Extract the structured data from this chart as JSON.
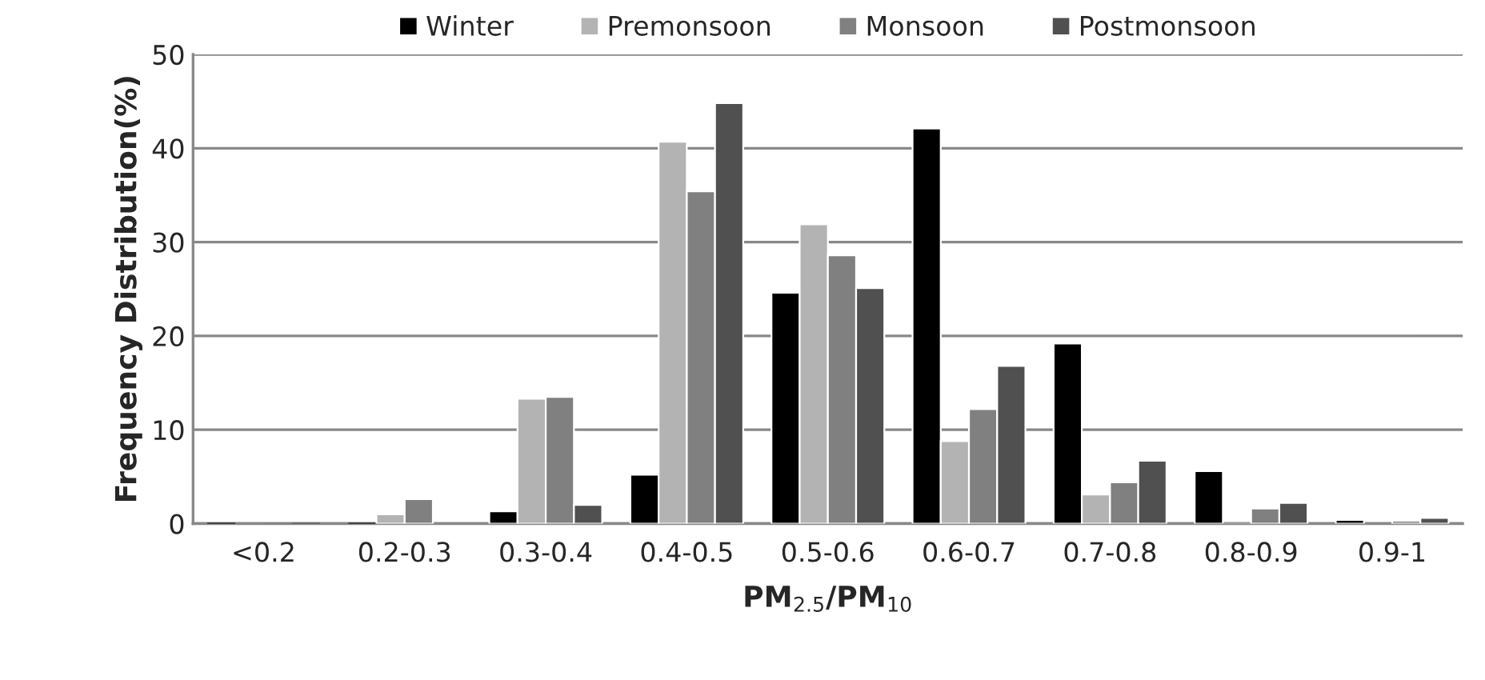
{
  "chart_data": {
    "type": "bar",
    "xlabel": "PM$_{2.5}$/PM$_{10}$",
    "ylabel": "Frequency Distribution(%)",
    "categories": [
      "<0.2",
      "0.2-0.3",
      "0.3-0.4",
      "0.4-0.5",
      "0.5-0.6",
      "0.6-0.7",
      "0.7-0.8",
      "0.8-0.9",
      "0.9-1"
    ],
    "series": [
      {
        "name": "Winter",
        "color": "#000000",
        "values": [
          0,
          0,
          1.3,
          5.2,
          24.6,
          42.1,
          19.2,
          5.6,
          0.4
        ]
      },
      {
        "name": "Premonsoon",
        "color": "#b3b3b3",
        "values": [
          null,
          1,
          13.3,
          40.7,
          31.9,
          8.8,
          3.1,
          0,
          null
        ]
      },
      {
        "name": "Monsoon",
        "color": "#808080",
        "values": [
          0,
          2.6,
          13.5,
          35.4,
          28.6,
          12.2,
          4.4,
          1.6,
          0.3
        ]
      },
      {
        "name": "Postmonsoon",
        "color": "#505050",
        "values": [
          0,
          null,
          2,
          44.8,
          25.1,
          16.8,
          6.7,
          2.2,
          0.6
        ]
      }
    ],
    "ylim": [
      0,
      50
    ],
    "yticks": [
      0,
      10,
      20,
      30,
      40,
      50
    ],
    "grid": "y",
    "legend": "top"
  }
}
